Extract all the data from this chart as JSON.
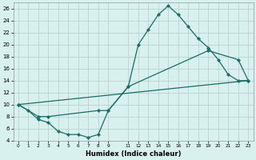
{
  "xlabel": "Humidex (Indice chaleur)",
  "xlim": [
    -0.5,
    23.5
  ],
  "ylim": [
    4,
    27
  ],
  "yticks": [
    4,
    6,
    8,
    10,
    12,
    14,
    16,
    18,
    20,
    22,
    24,
    26
  ],
  "xticks": [
    0,
    1,
    2,
    3,
    4,
    5,
    6,
    7,
    8,
    9,
    11,
    12,
    13,
    14,
    15,
    16,
    17,
    18,
    19,
    20,
    21,
    22,
    23
  ],
  "bg_color": "#d8f0ee",
  "grid_color": "#b8d4d2",
  "line_color": "#1a6e65",
  "line1_x": [
    0,
    1,
    2,
    3,
    4,
    5,
    6,
    7,
    8,
    9,
    11,
    12,
    13,
    14,
    15,
    16,
    17,
    18,
    19,
    20,
    21,
    22,
    23
  ],
  "line1_y": [
    10,
    9,
    7.5,
    7,
    5.5,
    5,
    5,
    4.5,
    5,
    9,
    13,
    20,
    22.5,
    25,
    26.5,
    25,
    23,
    21,
    19.5,
    17.5,
    15,
    14,
    14
  ],
  "line2_x": [
    0,
    23
  ],
  "line2_y": [
    10,
    14
  ],
  "line3_x": [
    0,
    2,
    3,
    8,
    9,
    11,
    19,
    22,
    23
  ],
  "line3_y": [
    10,
    8,
    8,
    9,
    9,
    13,
    19,
    17.5,
    14
  ]
}
